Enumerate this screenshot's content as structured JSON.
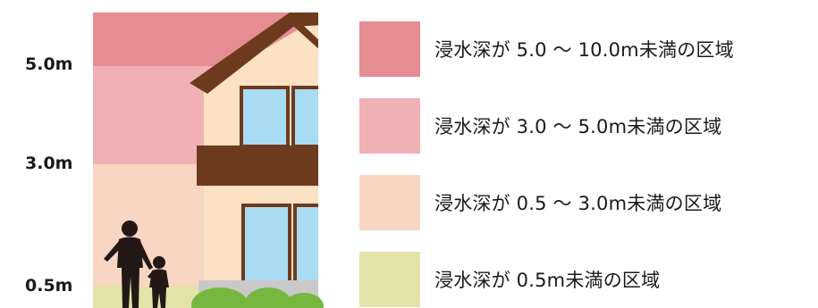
{
  "depth_markers": [
    {
      "label": "5.0m"
    },
    {
      "label": "3.0m"
    },
    {
      "label": "0.5m"
    }
  ],
  "legend": [
    {
      "label": "浸水深が 5.0 ～ 10.0m未満の区域",
      "color": "#e58d93"
    },
    {
      "label": "浸水深が 3.0 ～ 5.0m未満の区域",
      "color": "#f0b1b4"
    },
    {
      "label": "浸水深が 0.5 ～ 3.0m未満の区域",
      "color": "#f9d5c3"
    },
    {
      "label": "浸水深が 0.5m未満の区域",
      "color": "#e4e2a9"
    }
  ],
  "colors": {
    "house_wall": "#fde1c4",
    "roof": "#6e3a1d",
    "window_glass": "#a9dcf3",
    "window_frame": "#6e3a1d",
    "foundation": "#c9c9c9",
    "shrub": "#76b83f",
    "figure": "#231815"
  },
  "icons": {
    "house": "house-icon",
    "people": "adult-child-icon",
    "shrub": "shrub-icon"
  }
}
